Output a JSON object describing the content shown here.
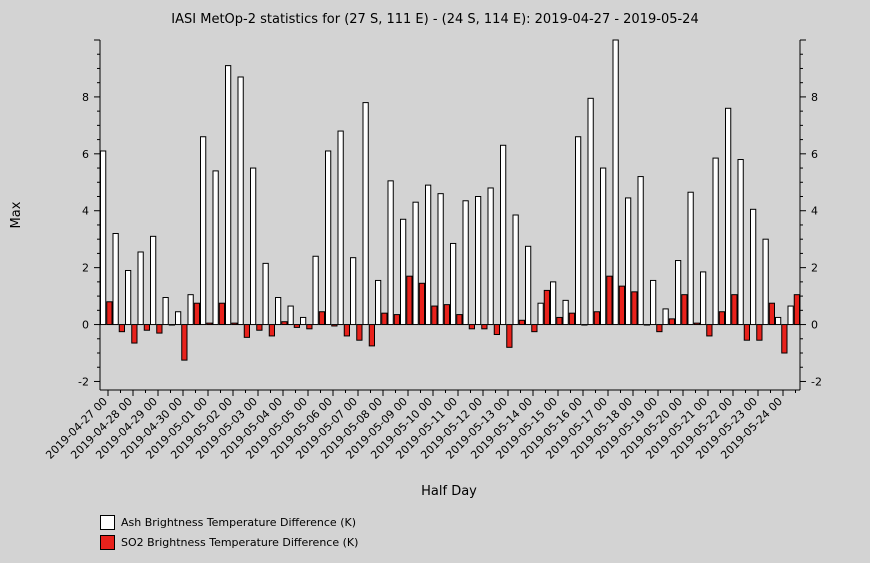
{
  "chart_data": {
    "type": "bar",
    "title": "IASI MetOp-2 statistics for (27 S, 111 E) - (24 S, 114 E): 2019-04-27 - 2019-05-24",
    "xlabel": "Half Day",
    "ylabel": "Max",
    "ylim": [
      -2.3,
      10
    ],
    "yticks": [
      -2,
      0,
      2,
      4,
      6,
      8
    ],
    "grid": false,
    "legend_position": "bottom-left",
    "x_tick_labels": [
      "2019-04-27 00",
      "2019-04-28 00",
      "2019-04-29 00",
      "2019-04-30 00",
      "2019-05-01 00",
      "2019-05-02 00",
      "2019-05-03 00",
      "2019-05-04 00",
      "2019-05-05 00",
      "2019-05-06 00",
      "2019-05-07 00",
      "2019-05-08 00",
      "2019-05-09 00",
      "2019-05-10 00",
      "2019-05-11 00",
      "2019-05-12 00",
      "2019-05-13 00",
      "2019-05-14 00",
      "2019-05-15 00",
      "2019-05-16 00",
      "2019-05-17 00",
      "2019-05-18 00",
      "2019-05-19 00",
      "2019-05-20 00",
      "2019-05-21 00",
      "2019-05-22 00",
      "2019-05-23 00",
      "2019-05-24 00"
    ],
    "series": [
      {
        "name": "Ash Brightness Temperature Difference (K)",
        "color": "#ffffff",
        "values": [
          6.1,
          3.2,
          1.9,
          2.55,
          3.1,
          0.95,
          0.45,
          1.05,
          6.6,
          5.4,
          9.1,
          8.7,
          5.5,
          2.15,
          0.95,
          0.65,
          0.25,
          2.4,
          6.1,
          6.8,
          2.35,
          7.8,
          1.55,
          5.05,
          3.7,
          4.3,
          4.9,
          4.6,
          2.85,
          4.35,
          4.5,
          4.8,
          6.3,
          3.85,
          2.75,
          0.75,
          1.5,
          0.85,
          6.6,
          7.95,
          5.5,
          10.0,
          4.45,
          5.2,
          1.55,
          0.55,
          2.25,
          4.65,
          1.85,
          5.85,
          7.6,
          5.8,
          4.05,
          3.0,
          0.25,
          0.65
        ]
      },
      {
        "name": "SO2 Brightness Temperature Difference (K)",
        "color": "#e8221c",
        "values": [
          0.8,
          -0.25,
          -0.65,
          -0.2,
          -0.3,
          0.0,
          -1.25,
          0.75,
          0.05,
          0.75,
          0.05,
          -0.45,
          -0.2,
          -0.4,
          0.1,
          -0.1,
          -0.15,
          0.45,
          -0.05,
          -0.4,
          -0.55,
          -0.75,
          0.4,
          0.35,
          1.7,
          1.45,
          0.65,
          0.7,
          0.35,
          -0.15,
          -0.15,
          -0.35,
          -0.8,
          0.15,
          -0.25,
          1.2,
          0.25,
          0.4,
          0.0,
          0.45,
          1.7,
          1.35,
          1.15,
          0.0,
          -0.25,
          0.2,
          1.05,
          0.05,
          -0.4,
          0.45,
          1.05,
          -0.55,
          -0.55,
          0.75,
          -1.0,
          1.05
        ]
      }
    ]
  }
}
